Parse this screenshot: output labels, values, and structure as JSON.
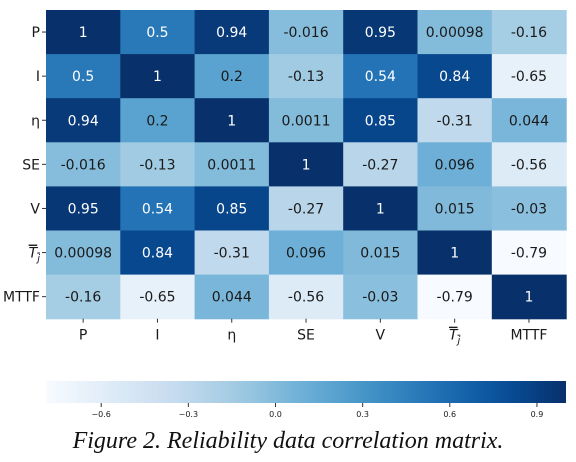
{
  "chart_data": {
    "type": "heatmap",
    "row_labels": [
      "P",
      "I",
      "η",
      "SE",
      "V",
      "T_j",
      "MTTF"
    ],
    "col_labels": [
      "P",
      "I",
      "η",
      "SE",
      "V",
      "T_j",
      "MTTF"
    ],
    "display_labels": {
      "rows": [
        "P",
        "I",
        "η",
        "SE",
        "V",
        "T",
        "MTTF"
      ],
      "cols": [
        "P",
        "I",
        "η",
        "SE",
        "V",
        "T",
        "MTTF"
      ],
      "subscript_for": "T",
      "subscript": "j"
    },
    "values": [
      [
        1,
        0.5,
        0.94,
        -0.016,
        0.95,
        0.00098,
        -0.16
      ],
      [
        0.5,
        1,
        0.2,
        -0.13,
        0.54,
        0.84,
        -0.65
      ],
      [
        0.94,
        0.2,
        1,
        0.0011,
        0.85,
        -0.31,
        0.044
      ],
      [
        -0.016,
        -0.13,
        0.0011,
        1,
        -0.27,
        0.096,
        -0.56
      ],
      [
        0.95,
        0.54,
        0.85,
        -0.27,
        1,
        0.015,
        -0.03
      ],
      [
        0.00098,
        0.84,
        -0.31,
        0.096,
        0.015,
        1,
        -0.79
      ],
      [
        -0.16,
        -0.65,
        0.044,
        -0.56,
        -0.03,
        -0.79,
        1
      ]
    ],
    "value_labels": [
      [
        "1",
        "0.5",
        "0.94",
        "-0.016",
        "0.95",
        "0.00098",
        "-0.16"
      ],
      [
        "0.5",
        "1",
        "0.2",
        "-0.13",
        "0.54",
        "0.84",
        "-0.65"
      ],
      [
        "0.94",
        "0.2",
        "1",
        "0.0011",
        "0.85",
        "-0.31",
        "0.044"
      ],
      [
        "-0.016",
        "-0.13",
        "0.0011",
        "1",
        "-0.27",
        "0.096",
        "-0.56"
      ],
      [
        "0.95",
        "0.54",
        "0.85",
        "-0.27",
        "1",
        "0.015",
        "-0.03"
      ],
      [
        "0.00098",
        "0.84",
        "-0.31",
        "0.096",
        "0.015",
        "1",
        "-0.79"
      ],
      [
        "-0.16",
        "-0.65",
        "0.044",
        "-0.56",
        "-0.03",
        "-0.79",
        "1"
      ]
    ],
    "colormap": "Blues",
    "color_range": [
      -0.79,
      1
    ],
    "colorbar": {
      "orientation": "horizontal",
      "ticks": [
        -0.6,
        -0.3,
        0.0,
        0.3,
        0.6,
        0.9
      ],
      "tick_labels": [
        "−0.6",
        "−0.3",
        "0.0",
        "0.3",
        "0.6",
        "0.9"
      ]
    },
    "caption": "Figure 2. Reliability data correlation matrix."
  }
}
